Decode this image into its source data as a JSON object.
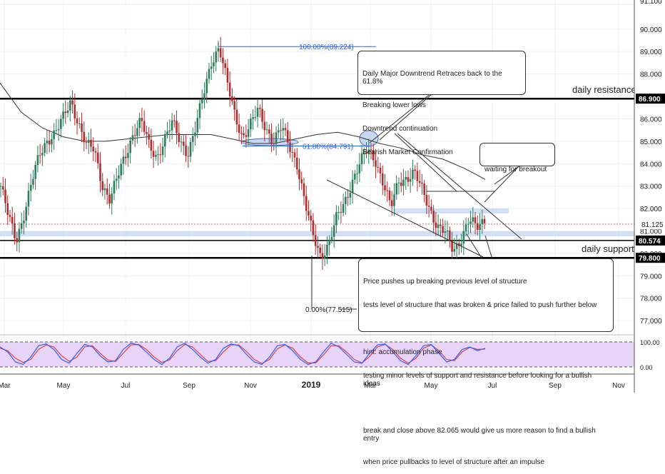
{
  "chart_data": {
    "type": "candlestick",
    "price_axis": {
      "ticks": [
        "91.100",
        "90.000",
        "89.000",
        "88.000",
        "87.000",
        "86.000",
        "85.000",
        "84.000",
        "83.000",
        "82.000",
        "81.000",
        "80.000",
        "79.000",
        "78.000",
        "77.000"
      ],
      "range": [
        76.4,
        91.3
      ]
    },
    "time_axis": {
      "labels": [
        "Mar",
        "May",
        "Jul",
        "Sep",
        "Nov",
        "2019",
        "Mar",
        "May",
        "Jul",
        "Sep",
        "Nov"
      ]
    },
    "price_series": [
      83.0,
      81.6,
      80.6,
      81.8,
      83.2,
      84.4,
      85.1,
      85.4,
      86.0,
      86.8,
      85.8,
      84.8,
      84.6,
      83.1,
      82.4,
      83.4,
      84.4,
      85.4,
      85.9,
      84.8,
      84.3,
      85.1,
      85.8,
      85.0,
      84.5,
      85.6,
      87.1,
      88.6,
      89.2,
      87.6,
      86.2,
      85.2,
      85.7,
      86.4,
      85.6,
      85.0,
      85.6,
      84.8,
      84.0,
      82.2,
      80.8,
      79.9,
      80.4,
      81.5,
      82.2,
      83.2,
      84.0,
      84.6,
      84.2,
      83.2,
      82.0,
      83.2,
      83.4,
      83.6,
      82.8,
      82.0,
      81.2,
      80.9,
      80.1,
      80.7,
      81.5,
      81.1,
      81.5
    ],
    "moving_average": [
      87.6,
      86.3,
      85.6,
      85.2,
      85.0,
      85.0,
      85.1,
      85.2,
      85.3,
      85.3,
      85.3,
      85.1,
      84.9,
      84.9,
      85.1,
      85.3,
      85.4,
      85.2,
      84.9,
      84.7,
      84.4,
      84.2,
      83.8,
      83.3
    ],
    "current_price": "81.125",
    "key_levels": [
      {
        "label": "daily resistance",
        "price": "86.900",
        "color": "#000000"
      },
      {
        "label": "daily support",
        "price": "79.800",
        "color": "#000000"
      },
      {
        "label": "",
        "price": "80.574",
        "color": "#000000"
      }
    ],
    "fibonacci": [
      {
        "label": "100.00%(89.224)",
        "value": 89.224
      },
      {
        "label": "61.80%(84.791)",
        "value": 84.791
      },
      {
        "label": "0.00%(77.515)",
        "value": 77.515
      }
    ],
    "oscillator": {
      "ticks": [
        "100.00",
        "0.00"
      ],
      "k": [
        80,
        60,
        20,
        10,
        40,
        85,
        92,
        70,
        30,
        15,
        55,
        90,
        80,
        45,
        20,
        25,
        70,
        95,
        88,
        60,
        30,
        10,
        35,
        80,
        95,
        70,
        40,
        15,
        30,
        75,
        92,
        85,
        50,
        20,
        10,
        40,
        85,
        90,
        65,
        30,
        10,
        20,
        60,
        95,
        80,
        50,
        20,
        15,
        55,
        88,
        92,
        60,
        25,
        10,
        45,
        85,
        90,
        55,
        20,
        30,
        70,
        80,
        65,
        75
      ],
      "d": [
        75,
        65,
        35,
        18,
        30,
        70,
        88,
        80,
        45,
        22,
        40,
        80,
        85,
        55,
        28,
        22,
        55,
        88,
        90,
        70,
        40,
        18,
        28,
        65,
        90,
        80,
        50,
        22,
        25,
        60,
        88,
        88,
        62,
        30,
        14,
        30,
        72,
        88,
        75,
        40,
        16,
        16,
        48,
        85,
        85,
        60,
        30,
        16,
        42,
        80,
        90,
        70,
        35,
        15,
        35,
        75,
        88,
        65,
        30,
        25,
        60,
        78,
        70,
        72
      ]
    }
  },
  "annotations": {
    "top_note": [
      "Daily Major Downtrend Retraces back to the 61.8%",
      "Breaking lower lows",
      "Downtrend continuation",
      "Bearish Market Confirmation"
    ],
    "breakout_note": "waiting for breakout",
    "bottom_note": [
      "Price pushes up breaking previous level of structure",
      "tests level of structure that was broken & price failed to push further below",
      "",
      "hint: accumulation phase",
      "testing minor levels of support and resistance before looking for a bullish ideas",
      "",
      "break and close above 82.065 would give us more reason to find a bullish entry",
      "when price pullbacks to level of structure after an impulse"
    ]
  },
  "colors": {
    "bull": "#2e7d5b",
    "bear": "#b32d2d",
    "fib": "#2962ff",
    "zone": "#c8d8f0",
    "ma": "#333333",
    "osc_k": "#2962ff",
    "osc_d": "#e04040",
    "osc_band": "#e8d4f8",
    "price_tag": "#000000"
  }
}
